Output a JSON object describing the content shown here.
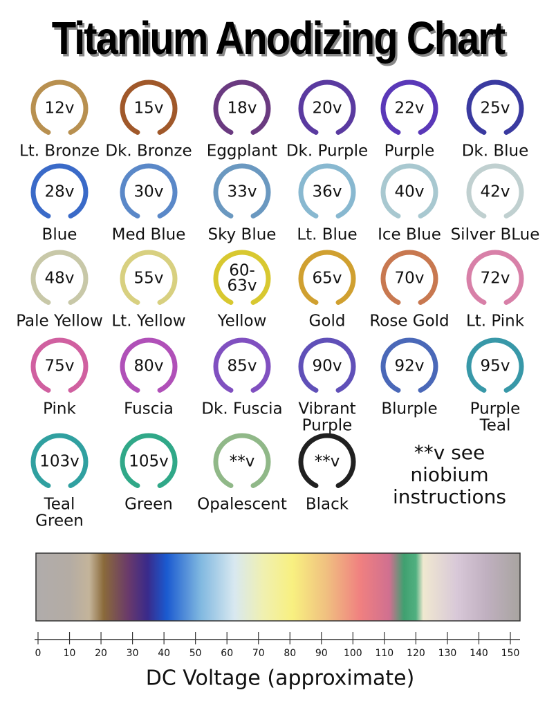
{
  "title": "Titanium Anodizing Chart",
  "rings": [
    {
      "voltage": [
        "12v"
      ],
      "name": [
        "Lt. Bronze"
      ],
      "color": "#b89050"
    },
    {
      "voltage": [
        "15v"
      ],
      "name": [
        "Dk. Bronze"
      ],
      "color": "#a0582a"
    },
    {
      "voltage": [
        "18v"
      ],
      "name": [
        "Eggplant"
      ],
      "color": "#6a3a80"
    },
    {
      "voltage": [
        "20v"
      ],
      "name": [
        "Dk. Purple"
      ],
      "color": "#5a3aa0"
    },
    {
      "voltage": [
        "22v"
      ],
      "name": [
        "Purple"
      ],
      "color": "#5a38b8"
    },
    {
      "voltage": [
        "25v"
      ],
      "name": [
        "Dk. Blue"
      ],
      "color": "#3a3aa0"
    },
    {
      "voltage": [
        "28v"
      ],
      "name": [
        "Blue"
      ],
      "color": "#3a6ac8"
    },
    {
      "voltage": [
        "30v"
      ],
      "name": [
        "Med Blue"
      ],
      "color": "#5a88c8"
    },
    {
      "voltage": [
        "33v"
      ],
      "name": [
        "Sky Blue"
      ],
      "color": "#6a98c0"
    },
    {
      "voltage": [
        "36v"
      ],
      "name": [
        "Lt. Blue"
      ],
      "color": "#88b8d0"
    },
    {
      "voltage": [
        "40v"
      ],
      "name": [
        "Ice Blue"
      ],
      "color": "#a8c8d0"
    },
    {
      "voltage": [
        "42v"
      ],
      "name": [
        "Silver BLue"
      ],
      "color": "#c0d0d0"
    },
    {
      "voltage": [
        "48v"
      ],
      "name": [
        "Pale Yellow"
      ],
      "color": "#c8c8a8"
    },
    {
      "voltage": [
        "55v"
      ],
      "name": [
        "Lt. Yellow"
      ],
      "color": "#d8d080"
    },
    {
      "voltage": [
        "60-",
        "63v"
      ],
      "name": [
        "Yellow"
      ],
      "color": "#d8c830"
    },
    {
      "voltage": [
        "65v"
      ],
      "name": [
        "Gold"
      ],
      "color": "#d0a030"
    },
    {
      "voltage": [
        "70v"
      ],
      "name": [
        "Rose Gold"
      ],
      "color": "#c87850"
    },
    {
      "voltage": [
        "72v"
      ],
      "name": [
        "Lt. Pink"
      ],
      "color": "#d880a8"
    },
    {
      "voltage": [
        "75v"
      ],
      "name": [
        "Pink"
      ],
      "color": "#d060a0"
    },
    {
      "voltage": [
        "80v"
      ],
      "name": [
        "Fuscia"
      ],
      "color": "#b050b8"
    },
    {
      "voltage": [
        "85v"
      ],
      "name": [
        "Dk. Fuscia"
      ],
      "color": "#8050c0"
    },
    {
      "voltage": [
        "90v"
      ],
      "name": [
        "Vibrant",
        "Purple"
      ],
      "color": "#6050b8"
    },
    {
      "voltage": [
        "92v"
      ],
      "name": [
        "Blurple"
      ],
      "color": "#4a68b8"
    },
    {
      "voltage": [
        "95v"
      ],
      "name": [
        "Purple",
        "Teal"
      ],
      "color": "#3898a8"
    },
    {
      "voltage": [
        "103v"
      ],
      "name": [
        "Teal",
        "Green"
      ],
      "color": "#30a0a0"
    },
    {
      "voltage": [
        "105v"
      ],
      "name": [
        "Green"
      ],
      "color": "#30a888"
    },
    {
      "voltage": [
        "**v"
      ],
      "name": [
        "Opalescent"
      ],
      "color": "#90b888"
    },
    {
      "voltage": [
        "**v"
      ],
      "name": [
        "Black"
      ],
      "color": "#202020"
    }
  ],
  "note": [
    "**v see",
    "niobium",
    "instructions"
  ],
  "scale": {
    "ticks": [
      0,
      10,
      20,
      30,
      40,
      50,
      60,
      70,
      80,
      90,
      100,
      110,
      120,
      130,
      140,
      150
    ],
    "label": "DC Voltage (approximate)"
  }
}
